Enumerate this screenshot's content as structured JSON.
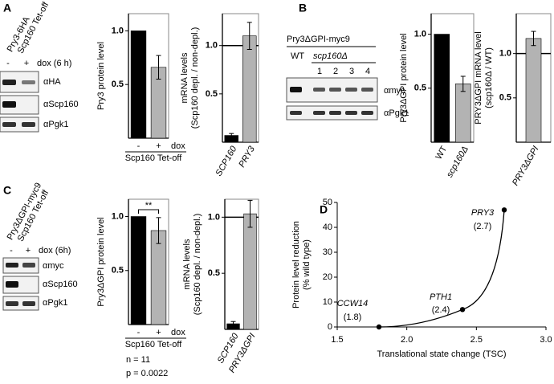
{
  "panel_labels": [
    "A",
    "B",
    "C",
    "D"
  ],
  "blots": [
    {
      "strain": [
        "Pry3-6HA",
        "Scp160 Tet-off"
      ],
      "lanes": [
        "-",
        "+"
      ],
      "condition": "dox (6 h)",
      "rows": [
        "αHA",
        "αScp160",
        "αPgk1"
      ]
    },
    {
      "strain": [
        "Pry3ΔGPI-myc9"
      ],
      "groups": [
        "WT",
        "scp160Δ"
      ],
      "lanes": [
        "1",
        "2",
        "3",
        "4"
      ],
      "rows": [
        "αmyc",
        "αPgk1"
      ]
    },
    {
      "strain": [
        "Pry3ΔGPI-myc9",
        "Scp160 Tet-off"
      ],
      "lanes": [
        "-",
        "+"
      ],
      "condition": "dox (6h)",
      "rows": [
        "αmyc",
        "αScp160",
        "αPgk1"
      ]
    }
  ],
  "chart_data": [
    {
      "type": "bar",
      "ylabel": [
        "Pry3 protein level"
      ],
      "categories": [
        "-",
        "+"
      ],
      "category_note": "dox",
      "xlabel": "Scp160 Tet-off",
      "values": [
        1,
        0.66
      ],
      "errors": [
        null,
        0.11
      ],
      "colors": [
        "#000000",
        "#b3b3b3"
      ],
      "ylim": [
        0,
        1.16
      ],
      "yticks": [
        0.5,
        {
          "value": 1,
          "label": "1.0"
        }
      ]
    },
    {
      "type": "bar",
      "ylabel": [
        "mRNA levels",
        "(Scp160 depl. / non-depl.)"
      ],
      "categories": [
        "SCP160",
        "PRY3"
      ],
      "values": [
        0.07,
        1.1
      ],
      "errors": [
        0.02,
        0.14
      ],
      "colors": [
        "#000000",
        "#b3b3b3"
      ],
      "ylim": [
        0,
        1.33
      ],
      "yticks": [
        0.5,
        {
          "value": 1,
          "label": "1.0"
        }
      ],
      "hline": 1
    },
    {
      "type": "bar",
      "ylabel": [
        "Pry3ΔGPI protein level"
      ],
      "categories": [
        "WT",
        "scp160Δ"
      ],
      "values": [
        1,
        0.54
      ],
      "errors": [
        null,
        0.07
      ],
      "colors": [
        "#000000",
        "#b3b3b3"
      ],
      "ylim": [
        0,
        1.19
      ],
      "yticks": [
        0.5,
        {
          "value": 1,
          "label": "1.0"
        }
      ]
    },
    {
      "type": "bar",
      "ylabel": [
        "PRY3ΔGPI mRNA level",
        "(scp160Δ / WT)"
      ],
      "categories": [
        "PRY3ΔGPI"
      ],
      "values": [
        1.17
      ],
      "errors": [
        0.08
      ],
      "colors": [
        "#b3b3b3"
      ],
      "ylim": [
        0,
        1.45
      ],
      "yticks": [
        0.5,
        {
          "value": 1,
          "label": "1.0"
        }
      ],
      "hline": 1
    },
    {
      "type": "bar",
      "ylabel": [
        "Pry3ΔGPI protein level"
      ],
      "categories": [
        "-",
        "+"
      ],
      "category_note": "dox",
      "xlabel": "Scp160 Tet-off",
      "values": [
        1,
        0.87
      ],
      "errors": [
        null,
        0.12
      ],
      "colors": [
        "#000000",
        "#b3b3b3"
      ],
      "ylim": [
        0,
        1.16
      ],
      "yticks": [
        0.5,
        {
          "value": 1,
          "label": "1.0"
        }
      ],
      "significance": "**",
      "stats": [
        "n = 11",
        "p = 0.0022"
      ]
    },
    {
      "type": "bar",
      "ylabel": [
        "mRNA levels",
        "(Scp160 depl. / non-depl.)"
      ],
      "categories": [
        "SCP160",
        "PRY3ΔGPI"
      ],
      "values": [
        0.05,
        1.03
      ],
      "errors": [
        0.02,
        0.12
      ],
      "colors": [
        "#000000",
        "#b3b3b3"
      ],
      "ylim": [
        0,
        1.16
      ],
      "yticks": [
        0.5,
        {
          "value": 1,
          "label": "1.0"
        }
      ],
      "hline": 1
    },
    {
      "type": "scatter",
      "ylabel": [
        "Protein level reduction",
        "(% wild type)"
      ],
      "xlabel": "Translational state change (TSC)",
      "point_labels": [
        "CCW14",
        "PTH1",
        "PRY3"
      ],
      "x": [
        1.8,
        2.4,
        2.7
      ],
      "values": [
        0,
        7,
        47
      ],
      "value_labels": [
        "(1.8)",
        "(2.4)",
        "(2.7)"
      ],
      "xlim": [
        1.5,
        3.0
      ],
      "ylim": [
        0,
        50
      ],
      "xticks": [
        1.5,
        {
          "value": 2,
          "label": "2.0"
        },
        2.5,
        {
          "value": 3,
          "label": "3.0"
        }
      ],
      "yticks": [
        0,
        10,
        20,
        30,
        40,
        50
      ],
      "color": "#000000"
    }
  ]
}
